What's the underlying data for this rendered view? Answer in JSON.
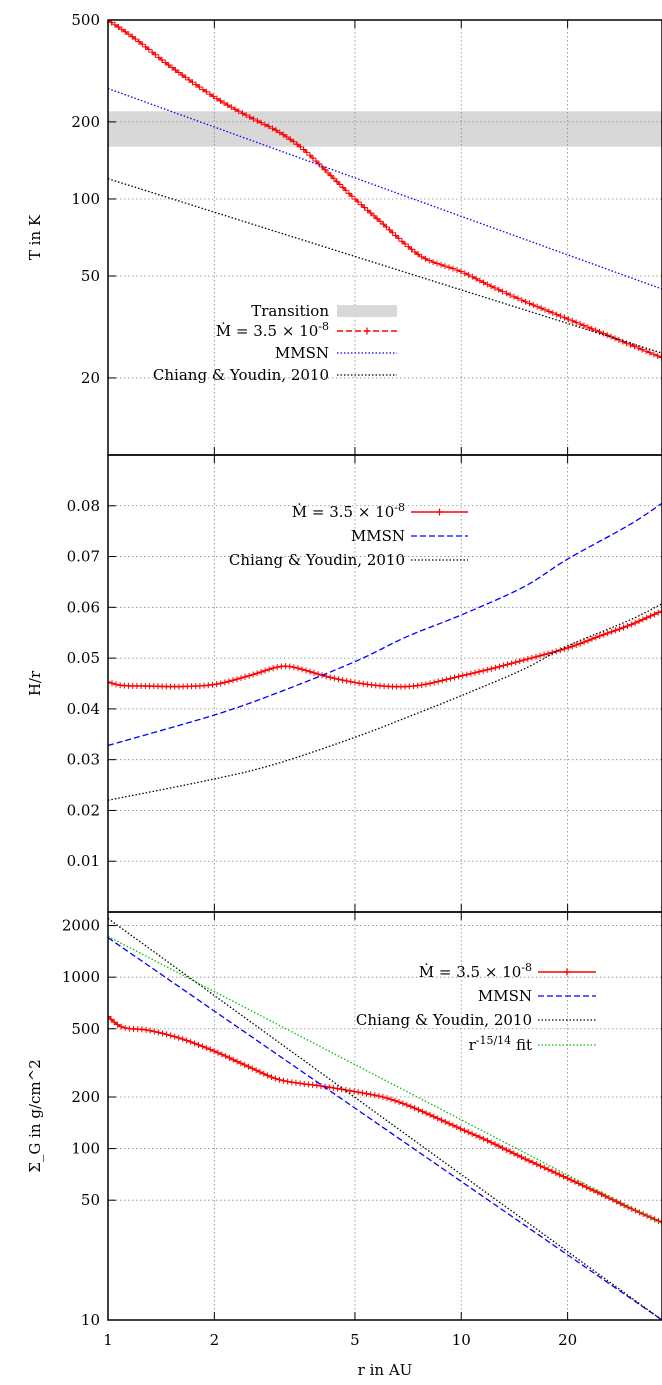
{
  "chart_data": [
    {
      "type": "line",
      "ylabel": "T in K",
      "xscale": "log",
      "yscale": "log",
      "xlim": [
        1,
        37
      ],
      "ylim": [
        10,
        500
      ],
      "yticks": [
        20,
        50,
        100,
        200,
        500
      ],
      "ytick_labels": [
        "20",
        "50",
        "100",
        "200",
        "500"
      ],
      "grid": true,
      "legend_placement": "lower-center",
      "band": {
        "name": "Transition",
        "y": [
          160,
          220
        ],
        "color": "#d8d8d8"
      },
      "series": [
        {
          "name": "$\\dot{M} = 3.5 \\times 10^{-8}$",
          "color": "#ff0000",
          "style": "dashed",
          "marker": "plus",
          "x": [
            1,
            1.2,
            1.5,
            2,
            2.5,
            3,
            3.5,
            4,
            4.5,
            5,
            6,
            7,
            8,
            10,
            12,
            15,
            20,
            25,
            30,
            37
          ],
          "y": [
            500,
            420,
            330,
            250,
            210,
            185,
            160,
            135,
            115,
            100,
            80,
            66,
            58,
            52,
            46,
            40,
            34,
            30,
            27,
            24
          ]
        },
        {
          "name": "MMSN",
          "color": "#0000ff",
          "style": "dotted",
          "x": [
            1,
            37
          ],
          "y": [
            270,
            44.5
          ]
        },
        {
          "name": "Chiang & Youdin, 2010",
          "color": "#000000",
          "style": "dotted",
          "x": [
            1,
            37
          ],
          "y": [
            120,
            25
          ]
        }
      ]
    },
    {
      "type": "line",
      "ylabel": "H/r",
      "xscale": "log",
      "yscale": "linear",
      "xlim": [
        1,
        37
      ],
      "ylim": [
        0,
        0.09
      ],
      "yticks": [
        0.01,
        0.02,
        0.03,
        0.04,
        0.05,
        0.06,
        0.07,
        0.08
      ],
      "ytick_labels": [
        "0.01",
        "0.02",
        "0.03",
        "0.04",
        "0.05",
        "0.06",
        "0.07",
        "0.08"
      ],
      "grid": true,
      "legend_placement": "top-center",
      "series": [
        {
          "name": "$\\dot{M} = 3.5 \\times 10^{-8}$",
          "color": "#ff0000",
          "style": "solid",
          "marker": "plus",
          "x": [
            1,
            1.1,
            1.3,
            1.6,
            2,
            2.5,
            3,
            3.3,
            3.7,
            4.2,
            5,
            6,
            7,
            8,
            10,
            12,
            15,
            20,
            25,
            30,
            37
          ],
          "y": [
            0.0453,
            0.0446,
            0.0445,
            0.0444,
            0.0448,
            0.0465,
            0.0482,
            0.0483,
            0.0474,
            0.0463,
            0.0452,
            0.0445,
            0.0444,
            0.0449,
            0.0465,
            0.0478,
            0.0496,
            0.052,
            0.0545,
            0.0565,
            0.0593
          ]
        },
        {
          "name": "MMSN",
          "color": "#0000ff",
          "style": "dashed",
          "x": [
            1,
            2,
            3,
            5,
            7,
            10,
            15,
            20,
            30,
            37
          ],
          "y": [
            0.0328,
            0.0388,
            0.0431,
            0.0493,
            0.0542,
            0.0585,
            0.064,
            0.0695,
            0.0763,
            0.0805
          ]
        },
        {
          "name": "Chiang & Youdin, 2010",
          "color": "#000000",
          "style": "dotted",
          "x": [
            1,
            2,
            3,
            5,
            7,
            10,
            15,
            20,
            30,
            37
          ],
          "y": [
            0.022,
            0.0262,
            0.0292,
            0.0344,
            0.0383,
            0.0426,
            0.0478,
            0.0524,
            0.0575,
            0.0607
          ]
        }
      ]
    },
    {
      "type": "line",
      "ylabel": "$\\Sigma_G$ in g/cm$^2$",
      "xlabel": "r in AU",
      "xscale": "log",
      "yscale": "log",
      "xlim": [
        1,
        37
      ],
      "ylim": [
        10,
        2400
      ],
      "xticks": [
        1,
        2,
        5,
        10,
        20
      ],
      "xtick_labels": [
        "1",
        "2",
        "5",
        "10",
        "20"
      ],
      "yticks": [
        10,
        50,
        100,
        200,
        500,
        1000,
        2000
      ],
      "ytick_labels": [
        "10",
        "50",
        "100",
        "200",
        "500",
        "1000",
        "2000"
      ],
      "grid": true,
      "legend_placement": "top-right",
      "series": [
        {
          "name": "$\\dot{M} = 3.5 \\times 10^{-8}$",
          "color": "#ff0000",
          "style": "solid",
          "marker": "plus",
          "x": [
            1,
            1.1,
            1.3,
            1.6,
            2,
            2.5,
            3,
            3.5,
            4,
            5,
            6,
            7,
            8,
            10,
            12,
            15,
            20,
            25,
            30,
            37
          ],
          "y": [
            590,
            510,
            490,
            440,
            370,
            300,
            255,
            240,
            232,
            215,
            200,
            180,
            160,
            130,
            110,
            88,
            67,
            54,
            45,
            37
          ]
        },
        {
          "name": "MMSN",
          "color": "#0000ff",
          "style": "dashed",
          "x": [
            1,
            37
          ],
          "y": [
            1700,
            10
          ]
        },
        {
          "name": "Chiang & Youdin, 2010",
          "color": "#000000",
          "style": "dotted",
          "x": [
            1,
            37
          ],
          "y": [
            2200,
            10
          ]
        },
        {
          "name": "$r^{-15/14}$ fit",
          "color": "#00c000",
          "style": "dotted",
          "x": [
            1,
            37
          ],
          "y": [
            1730,
            36.3
          ]
        }
      ]
    }
  ]
}
